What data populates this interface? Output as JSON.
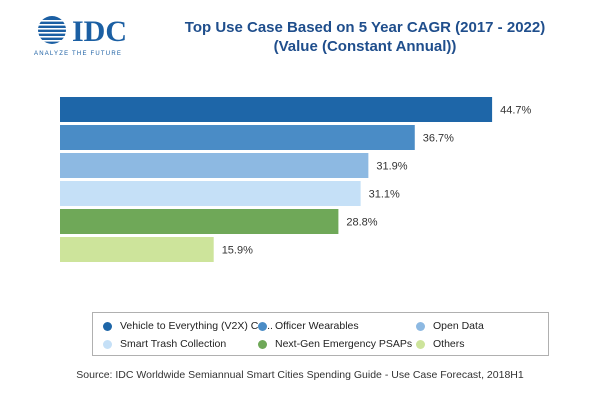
{
  "logo": {
    "text": "IDC",
    "tagline": "ANALYZE THE FUTURE"
  },
  "colors": {
    "title": "#1f4e8c",
    "logo": "#1b5fa3"
  },
  "chart_data": {
    "type": "bar",
    "orientation": "horizontal",
    "title": "Top Use Case Based on 5 Year CAGR  (2017 - 2022)",
    "subtitle": "(Value (Constant Annual))",
    "categories": [
      "Vehicle to Everything (V2X) Co...",
      "Officer Wearables",
      "Open Data",
      "Smart Trash Collection",
      "Next-Gen Emergency PSAPs",
      "Others"
    ],
    "values": [
      44.7,
      36.7,
      31.9,
      31.1,
      28.8,
      15.9
    ],
    "value_labels": [
      "44.7%",
      "36.7%",
      "31.9%",
      "31.1%",
      "28.8%",
      "15.9%"
    ],
    "colors": [
      "#1e66a8",
      "#4a8cc6",
      "#8db9e2",
      "#c5e0f7",
      "#6fa858",
      "#cde49b"
    ],
    "unit": "%",
    "xlim": [
      0,
      45
    ],
    "grid": false,
    "legend_position": "bottom"
  },
  "source": "Source: IDC Worldwide Semiannual Smart Cities Spending Guide - Use Case Forecast, 2018H1"
}
